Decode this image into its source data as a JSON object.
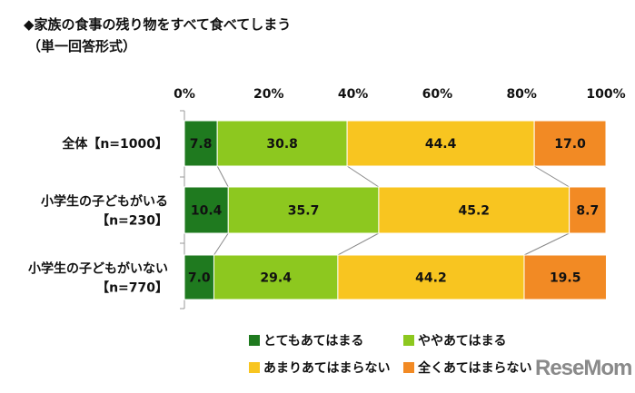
{
  "title": "◆家族の食事の残り物をすべて食べてしまう",
  "subtitle": "（単一回答形式）",
  "logo": "ReseMom",
  "chart_data": {
    "type": "bar",
    "stacked": true,
    "orientation": "horizontal",
    "title": "◆家族の食事の残り物をすべて食べてしまう",
    "categories": [
      [
        "全体【n=1000】"
      ],
      [
        "小学生の子どもがいる",
        "【n=230】"
      ],
      [
        "小学生の子どもがいない",
        "【n=770】"
      ]
    ],
    "series": [
      {
        "name": "とてもあてはまる",
        "color": "#1f7a1f",
        "values": [
          7.8,
          10.4,
          7.0
        ]
      },
      {
        "name": "ややあてはまる",
        "color": "#8dc81f",
        "values": [
          30.8,
          35.7,
          29.4
        ]
      },
      {
        "name": "あまりあてはまらない",
        "color": "#f8c520",
        "values": [
          44.4,
          45.2,
          44.2
        ]
      },
      {
        "name": "全くあてはまらない",
        "color": "#f28a24",
        "values": [
          17.0,
          8.7,
          19.5
        ]
      }
    ],
    "xticks": [
      "0%",
      "20%",
      "40%",
      "60%",
      "80%",
      "100%"
    ],
    "xlim": [
      0,
      100
    ],
    "legend_position": "bottom"
  }
}
